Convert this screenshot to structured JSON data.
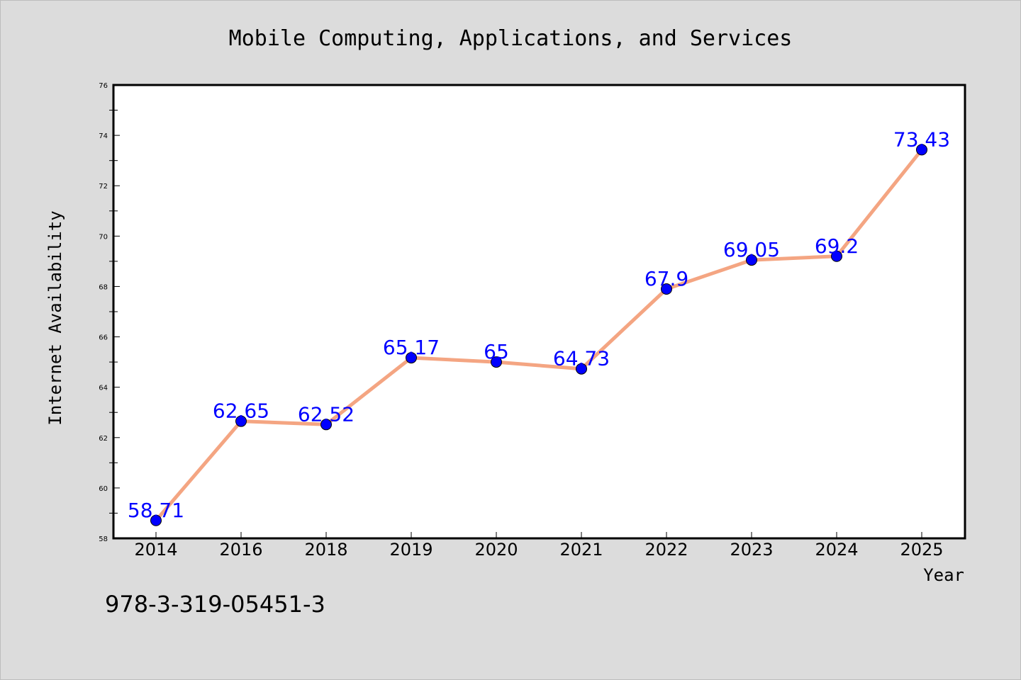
{
  "chart_data": {
    "type": "line",
    "title": "Mobile Computing, Applications, and Services",
    "xlabel": "Year",
    "ylabel": "Internet Availability",
    "categories": [
      "2014",
      "2016",
      "2018",
      "2019",
      "2020",
      "2021",
      "2022",
      "2023",
      "2024",
      "2025"
    ],
    "series": [
      {
        "values": [
          58.71,
          62.65,
          62.52,
          65.17,
          65,
          64.73,
          67.9,
          69.05,
          69.2,
          73.43
        ],
        "labels": [
          "58.71",
          "62.65",
          "62.52",
          "65.17",
          "65",
          "64.73",
          "67.9",
          "69.05",
          "69.2",
          "73.43"
        ]
      }
    ],
    "ylim": [
      58,
      76
    ],
    "yticks": [
      58,
      60,
      62,
      64,
      66,
      68,
      70,
      72,
      74,
      76
    ],
    "grid": false,
    "legend": "none",
    "annotation": "978-3-319-05451-3",
    "colors": {
      "background": "#dcdcdc",
      "plot_background": "#ffffff",
      "line": "#f4a582",
      "marker": "#0000ff",
      "data_label": "#0000ff",
      "text": "#000000"
    }
  }
}
